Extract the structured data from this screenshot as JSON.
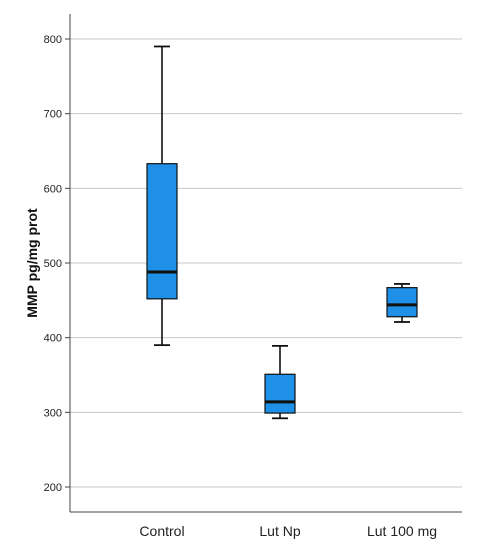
{
  "chart_data": {
    "type": "boxplot",
    "title": "",
    "xlabel": "",
    "ylabel": "MMP pg/mg prot",
    "ylim": [
      175,
      815
    ],
    "yticks": [
      200,
      300,
      400,
      500,
      600,
      700,
      800
    ],
    "grid": "horizontal",
    "categories": [
      "Control",
      "Lut Np",
      "Lut 100 mg"
    ],
    "boxes": [
      {
        "category": "Control",
        "min": 390,
        "q1": 452,
        "median": 488,
        "q3": 633,
        "max": 790
      },
      {
        "category": "Lut Np",
        "min": 292,
        "q1": 299,
        "median": 314,
        "q3": 351,
        "max": 389
      },
      {
        "category": "Lut 100 mg",
        "min": 421,
        "q1": 428,
        "median": 444,
        "q3": 467,
        "max": 472
      }
    ],
    "colors": {
      "box_fill": "#1e90e8",
      "box_stroke": "#111111",
      "grid": "#c8c8c8",
      "axis": "#444444"
    }
  }
}
